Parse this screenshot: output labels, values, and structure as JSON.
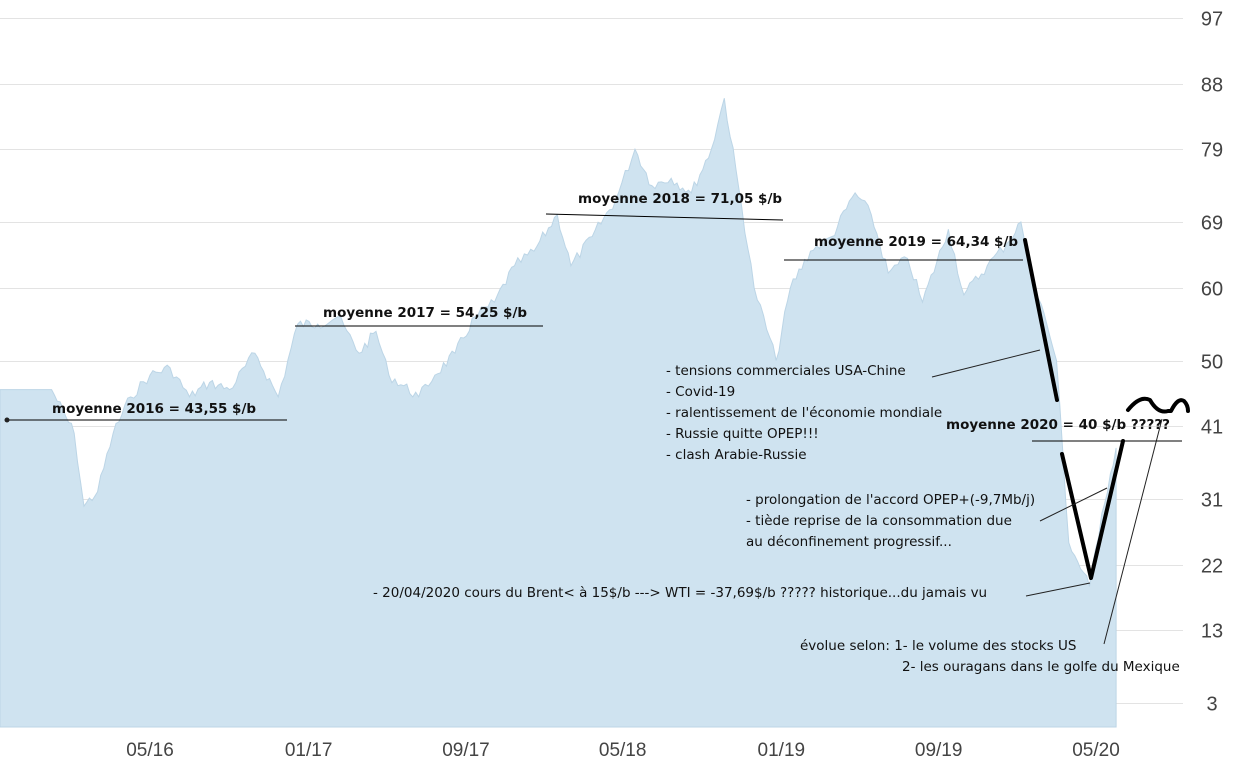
{
  "chart_data": {
    "type": "area",
    "title": "",
    "xlabel": "",
    "ylabel": "",
    "y_ticks": [
      "97",
      "88",
      "79",
      "69",
      "60",
      "50",
      "41",
      "31",
      "22",
      "13",
      "3"
    ],
    "x_ticks": [
      "05/16",
      "01/17",
      "09/17",
      "05/18",
      "01/19",
      "09/19",
      "05/20"
    ],
    "ylim": [
      3,
      97
    ],
    "grid": true,
    "colors": {
      "area": "#cfe3f0",
      "grid": "#e3e3e3",
      "annotation": "#000000"
    },
    "series": [
      {
        "x": [
          "2015-12-01",
          "2016-01-05",
          "2016-01-20",
          "2016-02-10",
          "2016-03-05",
          "2016-04-01",
          "2016-05-01",
          "2016-06-01",
          "2016-07-01",
          "2016-08-01",
          "2016-09-01",
          "2016-10-10",
          "2016-11-15",
          "2016-12-15",
          "2017-01-15",
          "2017-02-15",
          "2017-03-20",
          "2017-04-15",
          "2017-05-05",
          "2017-06-20",
          "2017-07-15",
          "2017-08-15",
          "2017-09-15",
          "2017-10-15",
          "2017-11-15",
          "2017-12-15",
          "2018-01-20",
          "2018-02-10",
          "2018-03-15",
          "2018-04-20",
          "2018-05-20",
          "2018-06-15",
          "2018-07-15",
          "2018-08-15",
          "2018-09-15",
          "2018-10-05",
          "2018-11-01",
          "2018-11-20",
          "2018-12-24",
          "2019-01-15",
          "2019-02-15",
          "2019-03-20",
          "2019-04-25",
          "2019-05-20",
          "2019-06-15",
          "2019-07-15",
          "2019-08-07",
          "2019-09-16",
          "2019-10-10",
          "2019-11-15",
          "2019-12-15",
          "2020-01-06",
          "2020-01-25",
          "2020-02-15",
          "2020-03-01",
          "2020-03-20",
          "2020-04-21",
          "2020-05-10",
          "2020-06-01"
        ],
        "values": [
          46,
          40,
          30,
          32,
          40,
          45,
          48,
          49,
          45,
          47,
          46,
          51,
          45,
          55,
          55,
          56,
          51,
          54,
          48,
          45,
          48,
          51,
          56,
          58,
          63,
          65,
          70,
          63,
          67,
          72,
          79,
          74,
          75,
          73,
          79,
          86,
          71,
          60,
          50,
          60,
          65,
          67,
          73,
          70,
          62,
          64,
          58,
          68,
          59,
          63,
          66,
          69,
          61,
          55,
          50,
          25,
          19,
          29,
          38
        ]
      }
    ],
    "annotations": {
      "avg_2016": "moyenne 2016 = 43,55 $/b",
      "avg_2017": "moyenne 2017 = 54,25 $/b",
      "avg_2018": "moyenne 2018 = 71,05 $/b",
      "avg_2019": "moyenne 2019 = 64,34 $/b",
      "avg_2020": "moyenne 2020 = 40 $/b ?????",
      "causes": [
        "- tensions commerciales USA-Chine",
        "- Covid-19",
        "- ralentissement de l'économie mondiale",
        "- Russie quitte OPEP!!!",
        "- clash Arabie-Russie"
      ],
      "recovery": [
        "- prolongation de l'accord OPEP+(-9,7Mb/j)",
        "- tiède reprise de la consommation due",
        "au déconfinement progressif..."
      ],
      "crash": "- 20/04/2020 cours du Brent< à 15$/b  ---> WTI = -37,69$/b ????? historique...du jamais vu",
      "outlook": [
        "évolue selon: 1- le volume des stocks US",
        "2- les ouragans dans le golfe du Mexique"
      ]
    }
  }
}
